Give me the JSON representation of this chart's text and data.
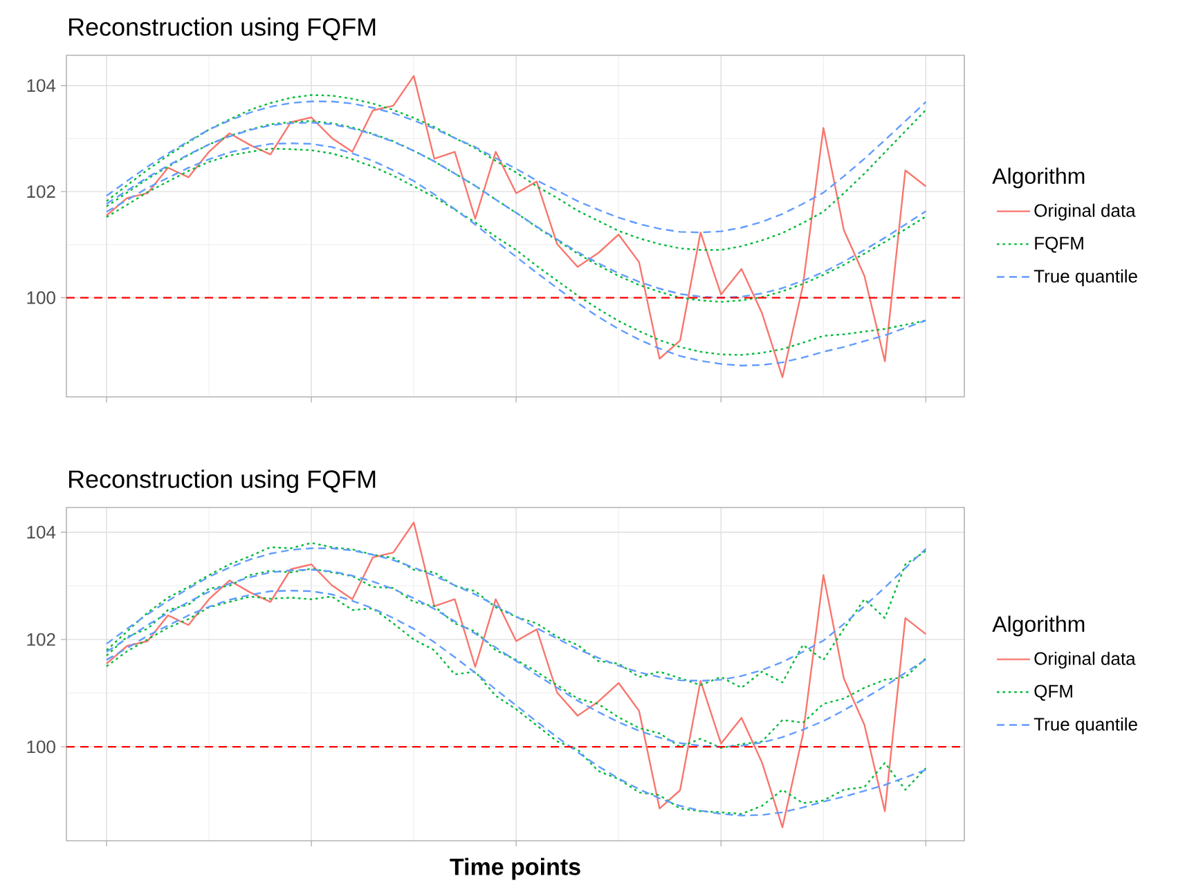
{
  "chart_data": [
    {
      "type": "line",
      "title": "Reconstruction using FQFM",
      "categories": [
        null,
        null,
        null,
        null,
        null,
        null,
        null,
        null,
        null,
        null,
        null,
        null,
        null,
        null,
        null,
        null,
        null,
        null,
        null,
        null,
        null,
        null,
        null,
        null,
        null,
        null,
        null,
        null,
        null,
        null,
        null,
        null,
        null,
        null,
        null,
        null,
        null,
        null,
        null,
        null,
        null
      ],
      "ylim": [
        98.13,
        104.57
      ],
      "yticks": [
        100,
        102,
        104
      ],
      "grid": true,
      "legend": "right",
      "legend_title": "Algorithm",
      "tick_labels": "y",
      "ref_lines": [
        {
          "axis": "y",
          "value": 100,
          "color": "#ff0000",
          "line_style": "dashed"
        }
      ],
      "series": [
        {
          "name": "Original data",
          "color": "#f8766d",
          "line_style": "solid",
          "values": [
            101.55,
            101.88,
            101.97,
            102.45,
            102.27,
            102.75,
            103.1,
            102.88,
            102.7,
            103.31,
            103.4,
            103.01,
            102.75,
            103.53,
            103.62,
            104.18,
            102.62,
            102.75,
            101.49,
            102.75,
            101.97,
            102.19,
            101.01,
            100.58,
            100.84,
            101.19,
            100.67,
            98.85,
            99.19,
            101.23,
            100.06,
            100.54,
            99.71,
            98.5,
            100.23,
            103.2,
            101.27,
            100.41,
            98.8,
            102.4,
            102.1
          ]
        },
        {
          "name": "FQFM",
          "color": "#00ba38",
          "line_style": "dotted",
          "values": [
            101.72,
            101.98,
            102.24,
            102.47,
            102.69,
            102.89,
            103.05,
            103.17,
            103.27,
            103.31,
            103.33,
            103.29,
            103.21,
            103.09,
            102.95,
            102.77,
            102.57,
            102.34,
            102.11,
            101.85,
            101.6,
            101.33,
            101.08,
            100.83,
            100.61,
            100.41,
            100.24,
            100.11,
            100.0,
            99.95,
            99.92,
            99.95,
            100.01,
            100.12,
            100.26,
            100.43,
            100.62,
            100.83,
            101.05,
            101.29,
            101.53
          ]
        },
        {
          "color": "#00ba38",
          "line_style": "dotted",
          "values": [
            101.82,
            102.12,
            102.41,
            102.68,
            102.93,
            103.17,
            103.36,
            103.54,
            103.67,
            103.77,
            103.82,
            103.81,
            103.75,
            103.66,
            103.54,
            103.39,
            103.22,
            103.01,
            102.82,
            102.58,
            102.36,
            102.1,
            101.88,
            101.64,
            101.45,
            101.26,
            101.12,
            101.01,
            100.93,
            100.9,
            100.9,
            100.97,
            101.08,
            101.22,
            101.41,
            101.62,
            101.97,
            102.34,
            102.74,
            103.14,
            103.54
          ]
        },
        {
          "color": "#00ba38",
          "line_style": "dotted",
          "values": [
            101.52,
            101.75,
            101.99,
            102.19,
            102.39,
            102.56,
            102.68,
            102.75,
            102.81,
            102.8,
            102.78,
            102.72,
            102.61,
            102.47,
            102.3,
            102.1,
            101.9,
            101.66,
            101.42,
            101.15,
            100.9,
            100.6,
            100.32,
            100.04,
            99.79,
            99.56,
            99.37,
            99.2,
            99.07,
            98.98,
            98.93,
            98.92,
            98.96,
            99.03,
            99.15,
            99.28,
            99.31,
            99.36,
            99.41,
            99.49,
            99.57
          ]
        },
        {
          "name": "True quantile",
          "color": "#619cff",
          "line_style": "dashed",
          "values": [
            101.77,
            102.02,
            102.27,
            102.49,
            102.7,
            102.89,
            103.04,
            103.16,
            103.25,
            103.29,
            103.3,
            103.27,
            103.19,
            103.08,
            102.94,
            102.77,
            102.57,
            102.34,
            102.11,
            101.85,
            101.6,
            101.34,
            101.1,
            100.86,
            100.65,
            100.46,
            100.3,
            100.17,
            100.07,
            100.02,
            100.0,
            100.02,
            100.08,
            100.18,
            100.32,
            100.48,
            100.68,
            100.9,
            101.13,
            101.38,
            101.63
          ]
        },
        {
          "color": "#619cff",
          "line_style": "dashed",
          "values": [
            101.92,
            102.2,
            102.47,
            102.72,
            102.95,
            103.17,
            103.34,
            103.49,
            103.6,
            103.67,
            103.7,
            103.7,
            103.66,
            103.58,
            103.48,
            103.34,
            103.19,
            103.01,
            102.84,
            102.63,
            102.43,
            102.21,
            102.02,
            101.82,
            101.66,
            101.51,
            101.39,
            101.3,
            101.24,
            101.23,
            101.25,
            101.32,
            101.43,
            101.58,
            101.77,
            101.98,
            102.29,
            102.62,
            102.97,
            103.33,
            103.69
          ]
        },
        {
          "color": "#619cff",
          "line_style": "dashed",
          "values": [
            101.62,
            101.84,
            102.07,
            102.26,
            102.45,
            102.61,
            102.74,
            102.83,
            102.9,
            102.91,
            102.9,
            102.84,
            102.72,
            102.58,
            102.4,
            102.2,
            101.95,
            101.67,
            101.38,
            101.07,
            100.77,
            100.47,
            100.18,
            99.9,
            99.64,
            99.41,
            99.21,
            99.04,
            98.9,
            98.81,
            98.75,
            98.72,
            98.73,
            98.78,
            98.87,
            98.98,
            99.07,
            99.18,
            99.29,
            99.43,
            99.57
          ]
        }
      ]
    },
    {
      "type": "line",
      "title": "Reconstruction using FQFM",
      "xlabel": "Time points",
      "categories": [
        null,
        null,
        null,
        null,
        null,
        null,
        null,
        null,
        null,
        null,
        null,
        null,
        null,
        null,
        null,
        null,
        null,
        null,
        null,
        null,
        null,
        null,
        null,
        null,
        null,
        null,
        null,
        null,
        null,
        null,
        null,
        null,
        null,
        null,
        null,
        null,
        null,
        null,
        null,
        null,
        null
      ],
      "ylim": [
        98.25,
        104.46
      ],
      "yticks": [
        100,
        102,
        104
      ],
      "grid": true,
      "legend": "right",
      "legend_title": "Algorithm",
      "tick_labels": "y",
      "ref_lines": [
        {
          "axis": "y",
          "value": 100,
          "color": "#ff0000",
          "line_style": "dashed"
        }
      ],
      "series": [
        {
          "name": "Original data",
          "color": "#f8766d",
          "line_style": "solid",
          "values": [
            101.55,
            101.88,
            101.97,
            102.45,
            102.27,
            102.75,
            103.1,
            102.88,
            102.7,
            103.31,
            103.4,
            103.01,
            102.75,
            103.53,
            103.62,
            104.18,
            102.62,
            102.75,
            101.49,
            102.75,
            101.97,
            102.19,
            101.01,
            100.58,
            100.84,
            101.19,
            100.67,
            98.85,
            99.19,
            101.23,
            100.06,
            100.54,
            99.71,
            98.5,
            100.23,
            103.2,
            101.27,
            100.41,
            98.8,
            102.4,
            102.1
          ]
        },
        {
          "name": "QFM",
          "color": "#00ba38",
          "line_style": "dotted",
          "values": [
            101.7,
            102.05,
            102.2,
            102.55,
            102.65,
            102.95,
            103.0,
            103.2,
            103.28,
            103.25,
            103.32,
            103.25,
            103.18,
            102.98,
            102.96,
            102.7,
            102.62,
            102.3,
            102.15,
            101.8,
            101.62,
            101.4,
            101.15,
            100.9,
            100.8,
            100.55,
            100.35,
            100.25,
            100.0,
            100.15,
            99.98,
            100.05,
            100.1,
            100.5,
            100.45,
            100.8,
            100.9,
            101.1,
            101.25,
            101.3,
            101.65
          ]
        },
        {
          "color": "#00ba38",
          "line_style": "dotted",
          "values": [
            101.8,
            102.15,
            102.5,
            102.78,
            102.98,
            103.2,
            103.4,
            103.55,
            103.72,
            103.7,
            103.8,
            103.72,
            103.68,
            103.58,
            103.52,
            103.3,
            103.25,
            103.0,
            102.9,
            102.6,
            102.42,
            102.3,
            102.05,
            101.9,
            101.6,
            101.55,
            101.3,
            101.4,
            101.28,
            101.15,
            101.3,
            101.1,
            101.4,
            101.2,
            101.9,
            101.62,
            102.2,
            102.75,
            102.4,
            103.4,
            103.65
          ]
        },
        {
          "color": "#00ba38",
          "line_style": "dotted",
          "values": [
            101.5,
            101.78,
            102.0,
            102.22,
            102.38,
            102.6,
            102.7,
            102.8,
            102.76,
            102.78,
            102.75,
            102.8,
            102.55,
            102.58,
            102.3,
            102.0,
            101.8,
            101.35,
            101.4,
            100.95,
            100.7,
            100.4,
            100.1,
            99.95,
            99.55,
            99.4,
            99.15,
            99.1,
            98.85,
            98.8,
            98.78,
            98.75,
            98.9,
            99.2,
            98.95,
            99.0,
            99.2,
            99.25,
            99.7,
            99.2,
            99.6
          ]
        },
        {
          "name": "True quantile",
          "color": "#619cff",
          "line_style": "dashed",
          "values": [
            101.77,
            102.02,
            102.27,
            102.49,
            102.7,
            102.89,
            103.04,
            103.16,
            103.25,
            103.29,
            103.3,
            103.27,
            103.19,
            103.08,
            102.94,
            102.77,
            102.57,
            102.34,
            102.11,
            101.85,
            101.6,
            101.34,
            101.1,
            100.86,
            100.65,
            100.46,
            100.3,
            100.17,
            100.07,
            100.02,
            100.0,
            100.02,
            100.08,
            100.18,
            100.32,
            100.48,
            100.68,
            100.9,
            101.13,
            101.38,
            101.63
          ]
        },
        {
          "color": "#619cff",
          "line_style": "dashed",
          "values": [
            101.92,
            102.2,
            102.47,
            102.72,
            102.95,
            103.17,
            103.34,
            103.49,
            103.6,
            103.67,
            103.7,
            103.7,
            103.66,
            103.58,
            103.48,
            103.34,
            103.19,
            103.01,
            102.84,
            102.63,
            102.43,
            102.21,
            102.02,
            101.82,
            101.66,
            101.51,
            101.39,
            101.3,
            101.24,
            101.23,
            101.25,
            101.32,
            101.43,
            101.58,
            101.77,
            101.98,
            102.29,
            102.62,
            102.97,
            103.33,
            103.69
          ]
        },
        {
          "color": "#619cff",
          "line_style": "dashed",
          "values": [
            101.62,
            101.84,
            102.07,
            102.26,
            102.45,
            102.61,
            102.74,
            102.83,
            102.9,
            102.91,
            102.9,
            102.84,
            102.72,
            102.58,
            102.4,
            102.2,
            101.95,
            101.67,
            101.38,
            101.07,
            100.77,
            100.47,
            100.18,
            99.9,
            99.64,
            99.41,
            99.21,
            99.04,
            98.9,
            98.81,
            98.75,
            98.72,
            98.73,
            98.78,
            98.87,
            98.98,
            99.07,
            99.18,
            99.29,
            99.43,
            99.57
          ]
        }
      ]
    }
  ]
}
